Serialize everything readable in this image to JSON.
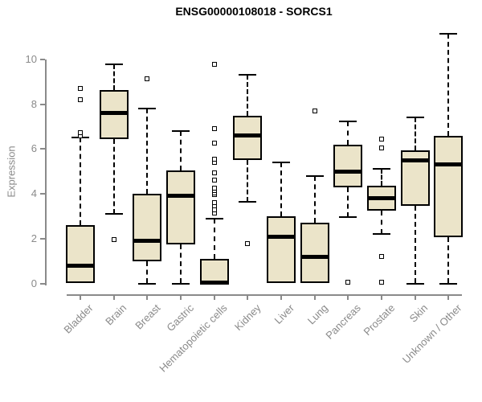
{
  "title": "ENSG00000108018 - SORCS1",
  "chart_data": {
    "type": "boxplot",
    "title": "ENSG00000108018 - SORCS1",
    "xlabel": "",
    "ylabel": "Expression",
    "ylim": [
      0,
      11.2
    ],
    "yticks": [
      0,
      2,
      4,
      6,
      8,
      10
    ],
    "grid": false,
    "legend": "none",
    "categories": [
      "Bladder",
      "Brain",
      "Breast",
      "Gastric",
      "Hematopoietic cells",
      "Kidney",
      "Liver",
      "Lung",
      "Pancreas",
      "Prostate",
      "Skin",
      "Unknown / Other"
    ],
    "series": [
      {
        "name": "Bladder",
        "whisker_low": 0,
        "q1": 0,
        "median": 0.8,
        "q3": 2.6,
        "whisker_high": 6.5,
        "outliers": [
          6.6,
          6.75,
          8.2,
          8.7
        ]
      },
      {
        "name": "Brain",
        "whisker_low": 3.1,
        "q1": 6.45,
        "median": 7.6,
        "q3": 8.65,
        "whisker_high": 9.8,
        "outliers": [
          1.95
        ]
      },
      {
        "name": "Breast",
        "whisker_low": 0,
        "q1": 1.0,
        "median": 1.9,
        "q3": 4.0,
        "whisker_high": 7.8,
        "outliers": [
          9.15
        ]
      },
      {
        "name": "Gastric",
        "whisker_low": 0,
        "q1": 1.75,
        "median": 3.9,
        "q3": 5.05,
        "whisker_high": 6.8,
        "outliers": []
      },
      {
        "name": "Hematopoietic cells",
        "whisker_low": 0,
        "q1": 0,
        "median": 0.05,
        "q3": 1.1,
        "whisker_high": 2.9,
        "outliers": [
          3.15,
          3.3,
          3.45,
          3.6,
          3.95,
          4.05,
          4.15,
          4.25,
          4.6,
          4.95,
          5.4,
          5.55,
          6.25,
          6.9,
          9.8
        ]
      },
      {
        "name": "Kidney",
        "whisker_low": 3.65,
        "q1": 5.5,
        "median": 6.6,
        "q3": 7.5,
        "whisker_high": 9.3,
        "outliers": [
          1.77
        ]
      },
      {
        "name": "Liver",
        "whisker_low": 0,
        "q1": 0,
        "median": 2.1,
        "q3": 3.0,
        "whisker_high": 5.4,
        "outliers": []
      },
      {
        "name": "Lung",
        "whisker_low": 0,
        "q1": 0,
        "median": 1.2,
        "q3": 2.7,
        "whisker_high": 4.8,
        "outliers": [
          7.7
        ]
      },
      {
        "name": "Pancreas",
        "whisker_low": 2.95,
        "q1": 4.3,
        "median": 5.0,
        "q3": 6.2,
        "whisker_high": 7.25,
        "outliers": [
          0.05
        ]
      },
      {
        "name": "Prostate",
        "whisker_low": 2.2,
        "q1": 3.25,
        "median": 3.8,
        "q3": 4.35,
        "whisker_high": 5.1,
        "outliers": [
          6.45,
          6.05,
          1.2,
          0.05
        ]
      },
      {
        "name": "Skin",
        "whisker_low": 0,
        "q1": 3.45,
        "median": 5.5,
        "q3": 5.95,
        "whisker_high": 7.4,
        "outliers": []
      },
      {
        "name": "Unknown / Other",
        "whisker_low": 0,
        "q1": 2.05,
        "median": 5.3,
        "q3": 6.6,
        "whisker_high": 11.15,
        "outliers": []
      }
    ],
    "colors": {
      "box_fill": "#EBE4C9",
      "box_border": "#000000",
      "median": "#000000",
      "whisker": "#000000",
      "axis": "#8A8A8A",
      "tick_label": "#8A8A8A",
      "title": "#000000",
      "background": "#FFFFFF"
    }
  }
}
